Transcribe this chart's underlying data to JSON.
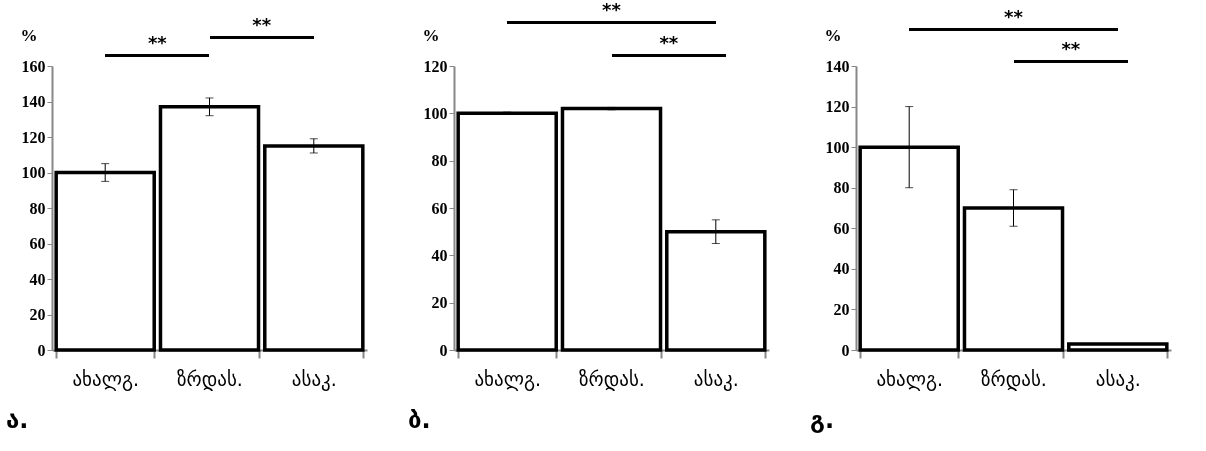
{
  "chart_data": [
    {
      "type": "bar",
      "title": "ა.",
      "ylabel": "%",
      "categories": [
        "ახალგ.",
        "ზრდას.",
        "ასაკ."
      ],
      "values": [
        100,
        137,
        115
      ],
      "errors": [
        5,
        5,
        4
      ],
      "color": "#ffffff",
      "ylim": [
        0,
        160
      ],
      "yticks": [
        0,
        20,
        40,
        60,
        80,
        100,
        120,
        140,
        160
      ],
      "annotations": [
        "**",
        "**"
      ]
    },
    {
      "type": "bar",
      "title": "ბ.",
      "ylabel": "%",
      "categories": [
        "ახალგ.",
        "ზრდას.",
        "ასაკ."
      ],
      "values": [
        100,
        102,
        50
      ],
      "errors": [
        0.5,
        0.5,
        5
      ],
      "color": "#ffffff",
      "ylim": [
        0,
        120
      ],
      "yticks": [
        0,
        20,
        40,
        60,
        80,
        100,
        120
      ],
      "annotations": [
        "**",
        "**"
      ]
    },
    {
      "type": "bar",
      "title": "გ.",
      "ylabel": "%",
      "categories": [
        "ახალგ.",
        "ზრდას.",
        "ასაკ."
      ],
      "values": [
        100,
        70,
        3
      ],
      "errors": [
        20,
        9,
        null
      ],
      "color": "#ffffff",
      "ylim": [
        0,
        140
      ],
      "yticks": [
        0,
        20,
        40,
        60,
        80,
        100,
        120,
        140
      ],
      "annotations": [
        "**",
        "**"
      ]
    }
  ]
}
